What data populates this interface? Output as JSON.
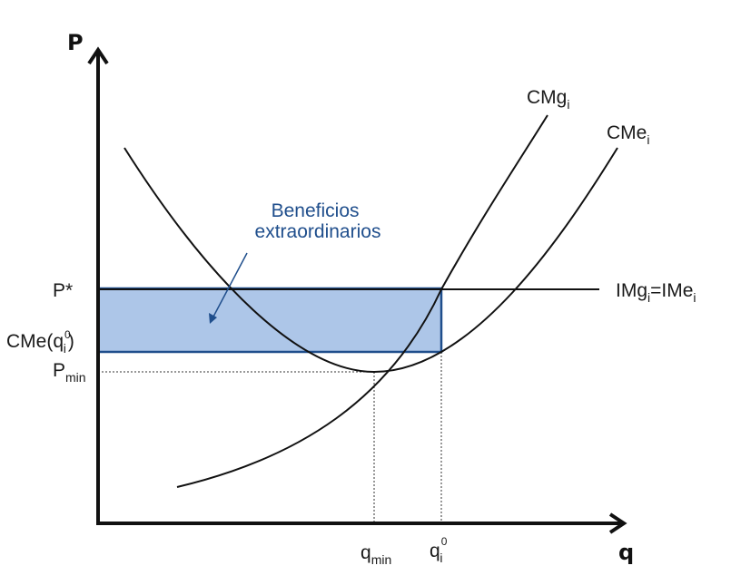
{
  "axes": {
    "y_title": "P",
    "x_title": "q"
  },
  "curves": {
    "cmg": {
      "main": "CMg",
      "sub": "i"
    },
    "cme": {
      "main": "CMe",
      "sub": "i"
    },
    "img": {
      "main1": "IMg",
      "sub1": "i",
      "eq": "=",
      "main2": "IMe",
      "sub2": "i"
    }
  },
  "y_labels": {
    "p_star": "P*",
    "cme_q0": {
      "prefix": "CMe(q",
      "sup": "0",
      "sub": "i",
      "suffix": ")"
    },
    "p_min": {
      "main": "P",
      "sub": "min"
    }
  },
  "x_labels": {
    "q_min": {
      "main": "q",
      "sub": "min"
    },
    "q_i0": {
      "main": "q",
      "sup": "0",
      "sub": "i"
    }
  },
  "annotation": {
    "line1": "Beneficios",
    "line2": "extraordinarios"
  },
  "colors": {
    "profit_fill": "#adc6e8",
    "profit_border": "#1f4e8c",
    "annotation_text": "#1f4e8c",
    "curve": "#111111"
  }
}
